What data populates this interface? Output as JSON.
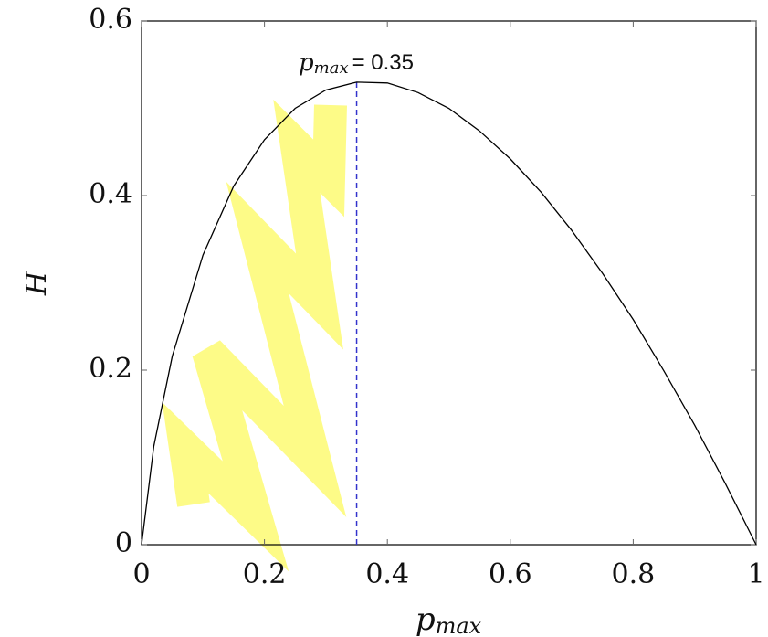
{
  "chart_data": {
    "type": "line",
    "xlabel": "p",
    "xlabel_sub": "max",
    "ylabel": "H",
    "x": [
      0,
      0.02,
      0.05,
      0.1,
      0.15,
      0.2,
      0.25,
      0.3,
      0.35,
      0.4,
      0.45,
      0.5,
      0.55,
      0.6,
      0.65,
      0.7,
      0.75,
      0.8,
      0.85,
      0.9,
      0.95,
      1
    ],
    "series": [
      {
        "color": "#000000",
        "values": [
          0,
          0.113,
          0.216,
          0.332,
          0.411,
          0.464,
          0.5,
          0.521,
          0.53,
          0.529,
          0.518,
          0.5,
          0.474,
          0.442,
          0.404,
          0.36,
          0.311,
          0.258,
          0.199,
          0.137,
          0.07,
          0
        ]
      }
    ],
    "vline": {
      "value": 0.35,
      "color": "#3333cc",
      "label_var": "p",
      "label_sub": "max",
      "label": "= 0.35"
    },
    "xlim": [
      0,
      1
    ],
    "xticks": [
      0,
      0.2,
      0.4,
      0.6,
      0.8,
      1
    ],
    "ylim": [
      0,
      0.6
    ],
    "yticks": [
      0,
      0.2,
      0.4,
      0.6
    ]
  }
}
